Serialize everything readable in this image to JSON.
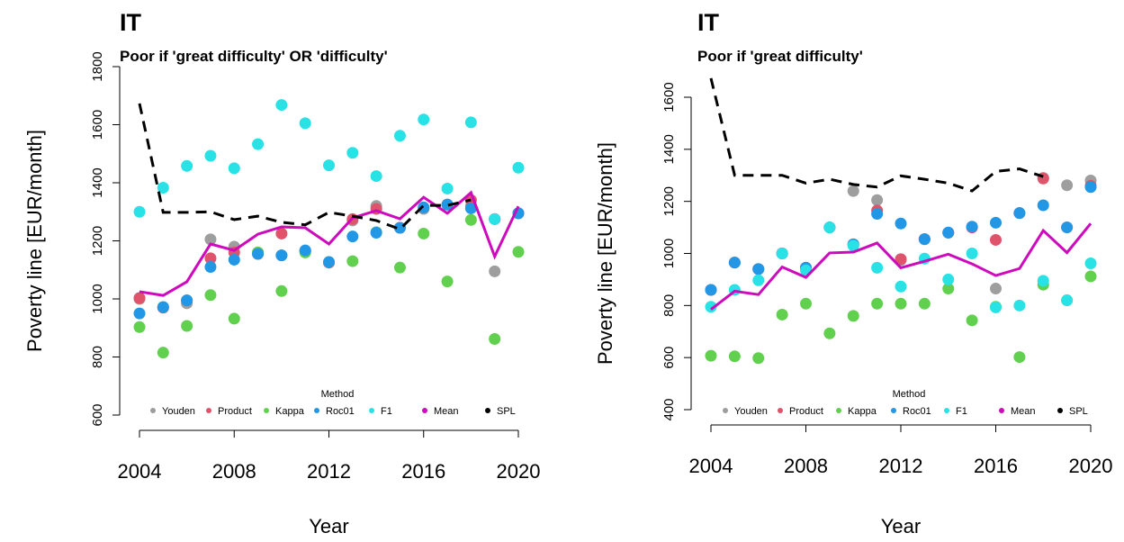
{
  "chart_data": [
    {
      "type": "line",
      "title": "IT",
      "subtitle": "Poor if 'great difficulty' OR 'difficulty'",
      "x_label": "Year",
      "y_label": "Poverty line [EUR/month]",
      "legend_title": "Method",
      "legend": "bottom",
      "x": [
        2004,
        2005,
        2006,
        2007,
        2008,
        2009,
        2010,
        2011,
        2012,
        2013,
        2014,
        2015,
        2016,
        2017,
        2018,
        2019,
        2020
      ],
      "xlim": [
        2004,
        2020
      ],
      "xticks": [
        2004,
        2008,
        2012,
        2016,
        2020
      ],
      "ylim": [
        600,
        1800
      ],
      "yticks": [
        600,
        800,
        1000,
        1200,
        1400,
        1600,
        1800
      ],
      "series": [
        {
          "name": "Youden",
          "color": "#9e9e9e",
          "style": "points",
          "values": [
            1000,
            970,
            985,
            1205,
            1180,
            1160,
            1150,
            1165,
            1125,
            1270,
            1320,
            1245,
            1310,
            1325,
            1320,
            1095,
            1295
          ]
        },
        {
          "name": "Product",
          "color": "#df536b",
          "style": "points",
          "values": [
            1003,
            970,
            995,
            1140,
            1160,
            1155,
            1225,
            1165,
            1125,
            1275,
            1310,
            1245,
            1315,
            1325,
            1340,
            1275,
            1295
          ]
        },
        {
          "name": "Kappa",
          "color": "#61d04f",
          "style": "points",
          "values": [
            903,
            815,
            907,
            1013,
            932,
            1160,
            1027,
            1160,
            1127,
            1130,
            1230,
            1108,
            1225,
            1060,
            1272,
            862,
            1162
          ]
        },
        {
          "name": "Roc01",
          "color": "#2297e6",
          "style": "points",
          "values": [
            950,
            972,
            995,
            1110,
            1135,
            1155,
            1150,
            1167,
            1127,
            1215,
            1228,
            1245,
            1315,
            1325,
            1312,
            1275,
            1295
          ]
        },
        {
          "name": "F1",
          "color": "#28e2e5",
          "style": "points",
          "values": [
            1300,
            1383,
            1458,
            1493,
            1450,
            1533,
            1668,
            1605,
            1460,
            1503,
            1423,
            1562,
            1618,
            1380,
            1608,
            1275,
            1452
          ]
        },
        {
          "name": "Mean",
          "color": "#cd0bbc",
          "style": "line",
          "values": [
            1025,
            1012,
            1059,
            1189,
            1167,
            1223,
            1248,
            1245,
            1189,
            1279,
            1304,
            1276,
            1350,
            1295,
            1366,
            1146,
            1319
          ]
        },
        {
          "name": "SPL",
          "color": "#000000",
          "style": "dashed",
          "values": [
            1673,
            1298,
            1298,
            1300,
            1273,
            1285,
            1264,
            1255,
            1298,
            1285,
            1270,
            1240,
            1322,
            1322,
            1341,
            null,
            null
          ]
        }
      ]
    },
    {
      "type": "line",
      "title": "IT",
      "subtitle": "Poor if 'great difficulty'",
      "x_label": "Year",
      "y_label": "Poverty line [EUR/month]",
      "legend_title": "Method",
      "legend": "bottom",
      "x": [
        2004,
        2005,
        2006,
        2007,
        2008,
        2009,
        2010,
        2011,
        2012,
        2013,
        2014,
        2015,
        2016,
        2017,
        2018,
        2019,
        2020
      ],
      "xlim": [
        2004,
        2020
      ],
      "xticks": [
        2004,
        2008,
        2012,
        2016,
        2020
      ],
      "ylim": [
        400,
        1600
      ],
      "yticks": [
        400,
        600,
        800,
        1000,
        1200,
        1400,
        1600
      ],
      "series": [
        {
          "name": "Youden",
          "color": "#9e9e9e",
          "style": "points",
          "values": [
            860,
            965,
            940,
            1000,
            945,
            1100,
            1240,
            1205,
            975,
            1055,
            1080,
            1100,
            865,
            1155,
            1290,
            1262,
            1280
          ]
        },
        {
          "name": "Product",
          "color": "#df536b",
          "style": "points",
          "values": [
            860,
            965,
            940,
            1000,
            945,
            1100,
            1035,
            1165,
            978,
            1055,
            1080,
            1100,
            1052,
            1155,
            1288,
            1100,
            1260
          ]
        },
        {
          "name": "Kappa",
          "color": "#61d04f",
          "style": "points",
          "values": [
            607,
            605,
            598,
            765,
            807,
            693,
            760,
            807,
            807,
            807,
            865,
            743,
            795,
            602,
            880,
            820,
            912
          ]
        },
        {
          "name": "Roc01",
          "color": "#2297e6",
          "style": "points",
          "values": [
            860,
            965,
            940,
            1000,
            945,
            1100,
            1035,
            1152,
            1115,
            1055,
            1080,
            1103,
            1118,
            1155,
            1185,
            1100,
            1255
          ]
        },
        {
          "name": "F1",
          "color": "#28e2e5",
          "style": "points",
          "values": [
            795,
            860,
            897,
            1000,
            935,
            1100,
            1030,
            945,
            873,
            980,
            900,
            1000,
            793,
            800,
            895,
            820,
            962
          ]
        },
        {
          "name": "Mean",
          "color": "#cd0bbc",
          "style": "line",
          "values": [
            785,
            855,
            842,
            948,
            908,
            1002,
            1005,
            1040,
            945,
            970,
            997,
            960,
            915,
            942,
            1088,
            1003,
            1115
          ]
        },
        {
          "name": "SPL",
          "color": "#000000",
          "style": "dashed",
          "values": [
            1673,
            1300,
            1300,
            1300,
            1270,
            1285,
            1265,
            1255,
            1298,
            1285,
            1270,
            1240,
            1315,
            1325,
            1295,
            null,
            null
          ]
        }
      ]
    }
  ]
}
